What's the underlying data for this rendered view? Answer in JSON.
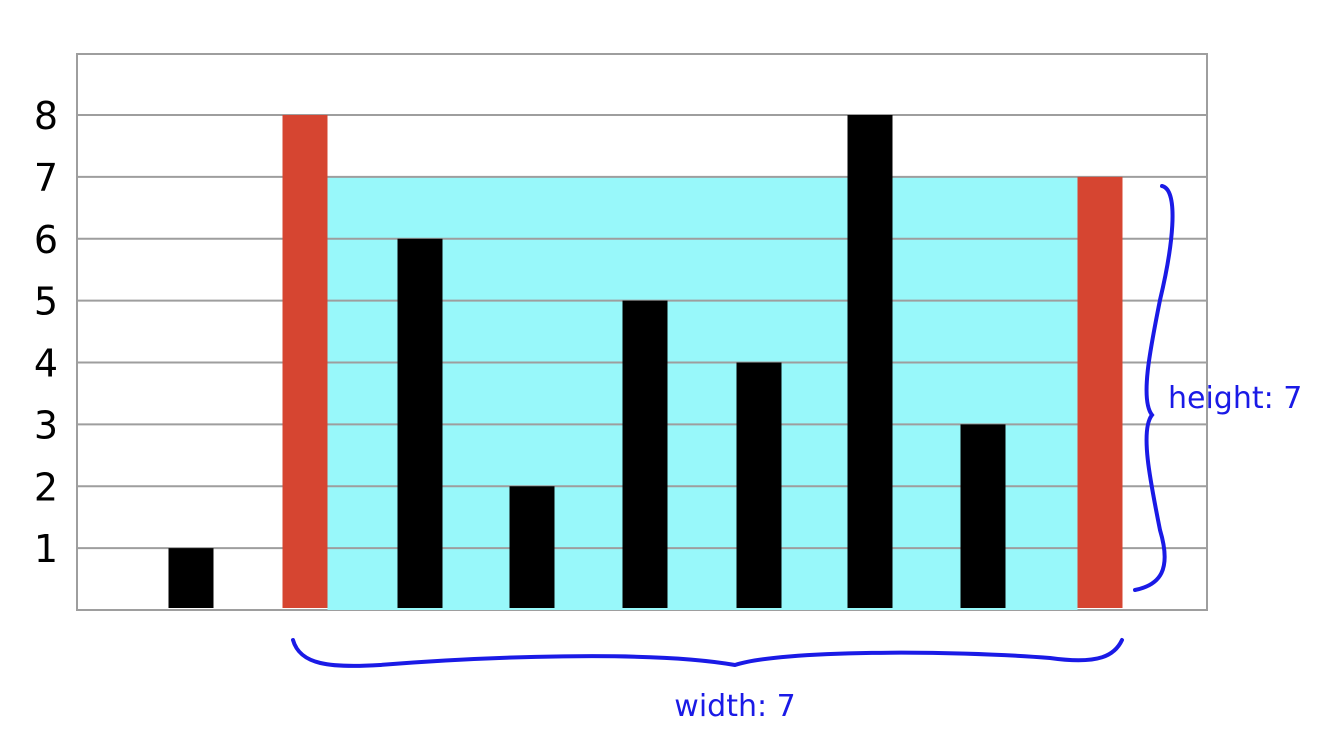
{
  "chart_data": {
    "type": "bar",
    "values": [
      1,
      8,
      6,
      2,
      5,
      4,
      8,
      3,
      7
    ],
    "highlighted_indices": [
      1,
      8
    ],
    "ylim": [
      0,
      9
    ],
    "yticks": [
      "1",
      "2",
      "3",
      "4",
      "5",
      "6",
      "7",
      "8"
    ],
    "grid": true,
    "fill_level": 7,
    "annotations": {
      "height": "height: 7",
      "width": "width: 7"
    }
  },
  "colors": {
    "bar": "#000000",
    "highlight": "#d64531",
    "water": "#98f8fa",
    "grid": "#9e9e9e",
    "annotation": "#1a1ae6",
    "background": "#ffffff"
  }
}
